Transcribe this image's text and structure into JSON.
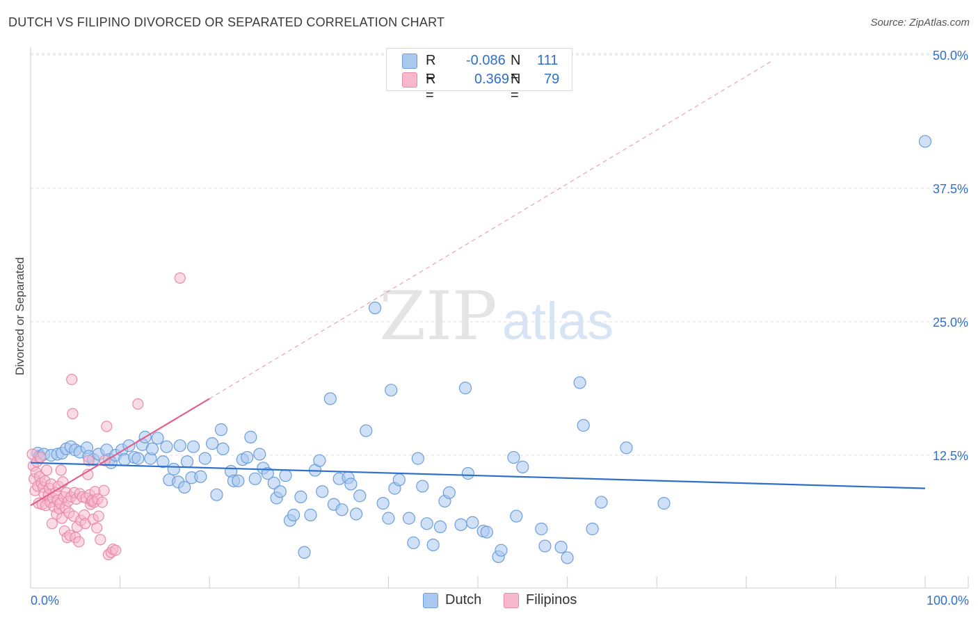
{
  "title": "DUTCH VS FILIPINO DIVORCED OR SEPARATED CORRELATION CHART",
  "source": "Source: ZipAtlas.com",
  "watermark": {
    "zip": "ZIP",
    "atlas": "atlas"
  },
  "colors": {
    "dutch_fill": "#a9c8f0",
    "dutch_stroke": "#6a9edc",
    "dutch_line": "#2f6fcc",
    "filipino_fill": "#f7b8cb",
    "filipino_stroke": "#e98aa8",
    "filipino_line": "#e0608c",
    "value_text": "#2f6fcc",
    "grid": "#dddddd"
  },
  "legend": {
    "rows": [
      {
        "series": "Dutch",
        "r_label": "R =",
        "r_value": "-0.086",
        "n_label": "N =",
        "n_value": "111"
      },
      {
        "series": "Filipinos",
        "r_label": "R =",
        "r_value": "0.369",
        "n_label": "N =",
        "n_value": "79"
      }
    ]
  },
  "bottom_legend": {
    "dutch": "Dutch",
    "filipinos": "Filipinos"
  },
  "chart_data": {
    "type": "scatter",
    "title": "DUTCH VS FILIPINO DIVORCED OR SEPARATED CORRELATION CHART",
    "xlabel": "",
    "ylabel": "Divorced or Separated",
    "xlim": [
      0,
      100
    ],
    "ylim": [
      0,
      50
    ],
    "x_tick_labels": [
      "0.0%",
      "100.0%"
    ],
    "y_ticks": [
      12.5,
      25.0,
      37.5,
      50.0
    ],
    "y_tick_labels": [
      "12.5%",
      "25.0%",
      "37.5%",
      "50.0%"
    ],
    "grid": true,
    "legend_position": "top-center",
    "series": [
      {
        "name": "Dutch",
        "r": -0.086,
        "n": 111,
        "trend": {
          "x": [
            0,
            100
          ],
          "y": [
            11.8,
            9.4
          ]
        },
        "points": [
          [
            0.8,
            12.7
          ],
          [
            1.0,
            12.4
          ],
          [
            1.5,
            12.6
          ],
          [
            2.3,
            12.5
          ],
          [
            3.0,
            12.6
          ],
          [
            3.5,
            12.7
          ],
          [
            4.0,
            13.1
          ],
          [
            4.5,
            13.3
          ],
          [
            5.0,
            13.0
          ],
          [
            5.5,
            12.8
          ],
          [
            6.3,
            13.2
          ],
          [
            6.5,
            12.4
          ],
          [
            7.0,
            12.1
          ],
          [
            7.6,
            12.6
          ],
          [
            8.5,
            13.0
          ],
          [
            8.8,
            12.1
          ],
          [
            9.0,
            11.8
          ],
          [
            9.5,
            12.5
          ],
          [
            10.2,
            13.0
          ],
          [
            10.5,
            12.1
          ],
          [
            11.0,
            13.4
          ],
          [
            11.6,
            12.3
          ],
          [
            12.0,
            12.2
          ],
          [
            12.5,
            13.5
          ],
          [
            12.8,
            14.2
          ],
          [
            13.4,
            12.2
          ],
          [
            13.6,
            13.1
          ],
          [
            14.2,
            14.1
          ],
          [
            14.8,
            11.9
          ],
          [
            15.2,
            13.3
          ],
          [
            15.5,
            10.2
          ],
          [
            16.0,
            11.2
          ],
          [
            16.5,
            10.0
          ],
          [
            16.7,
            13.4
          ],
          [
            17.2,
            9.5
          ],
          [
            17.5,
            11.9
          ],
          [
            18.0,
            10.4
          ],
          [
            18.2,
            13.3
          ],
          [
            19.0,
            10.5
          ],
          [
            19.5,
            12.2
          ],
          [
            20.3,
            13.6
          ],
          [
            20.8,
            8.8
          ],
          [
            21.3,
            14.9
          ],
          [
            21.5,
            13.1
          ],
          [
            22.4,
            11.0
          ],
          [
            22.7,
            10.1
          ],
          [
            23.2,
            10.1
          ],
          [
            23.7,
            12.1
          ],
          [
            24.2,
            12.3
          ],
          [
            24.6,
            14.2
          ],
          [
            25.1,
            10.3
          ],
          [
            25.6,
            12.6
          ],
          [
            26.0,
            11.3
          ],
          [
            26.5,
            10.8
          ],
          [
            27.2,
            9.9
          ],
          [
            27.5,
            8.5
          ],
          [
            27.9,
            9.1
          ],
          [
            28.5,
            10.6
          ],
          [
            29.0,
            6.4
          ],
          [
            29.4,
            6.9
          ],
          [
            30.2,
            8.6
          ],
          [
            30.6,
            3.4
          ],
          [
            31.3,
            6.9
          ],
          [
            31.8,
            11.1
          ],
          [
            32.3,
            12.0
          ],
          [
            32.6,
            9.1
          ],
          [
            33.5,
            17.8
          ],
          [
            33.9,
            7.9
          ],
          [
            34.5,
            10.3
          ],
          [
            34.8,
            7.4
          ],
          [
            35.5,
            10.4
          ],
          [
            35.8,
            9.8
          ],
          [
            36.4,
            7.0
          ],
          [
            36.8,
            8.7
          ],
          [
            37.5,
            14.8
          ],
          [
            38.5,
            26.3
          ],
          [
            39.4,
            8.0
          ],
          [
            40.0,
            6.6
          ],
          [
            40.3,
            18.6
          ],
          [
            40.7,
            9.4
          ],
          [
            41.2,
            10.2
          ],
          [
            42.3,
            6.6
          ],
          [
            42.8,
            4.3
          ],
          [
            43.3,
            12.2
          ],
          [
            43.8,
            9.6
          ],
          [
            44.3,
            6.1
          ],
          [
            45.0,
            4.1
          ],
          [
            45.8,
            5.8
          ],
          [
            46.3,
            8.2
          ],
          [
            46.8,
            9.0
          ],
          [
            48.1,
            6.0
          ],
          [
            48.6,
            18.8
          ],
          [
            48.9,
            10.8
          ],
          [
            49.4,
            6.2
          ],
          [
            50.6,
            5.4
          ],
          [
            51.0,
            5.3
          ],
          [
            52.3,
            3.0
          ],
          [
            52.6,
            3.6
          ],
          [
            54.0,
            12.3
          ],
          [
            54.3,
            6.8
          ],
          [
            55.0,
            11.4
          ],
          [
            57.1,
            5.6
          ],
          [
            57.5,
            4.0
          ],
          [
            59.3,
            3.9
          ],
          [
            60.0,
            2.9
          ],
          [
            61.4,
            19.3
          ],
          [
            61.8,
            15.3
          ],
          [
            62.8,
            5.6
          ],
          [
            63.8,
            8.1
          ],
          [
            66.6,
            13.2
          ],
          [
            70.8,
            8.0
          ],
          [
            100.0,
            41.9
          ]
        ]
      },
      {
        "name": "Filipinos",
        "r": 0.369,
        "n": 79,
        "trend": {
          "x": [
            0,
            20
          ],
          "y": [
            7.8,
            17.8
          ]
        },
        "trend_extended": {
          "x": [
            20,
            83
          ],
          "y": [
            17.8,
            49.5
          ]
        },
        "points": [
          [
            0.2,
            12.6
          ],
          [
            0.3,
            11.5
          ],
          [
            0.4,
            10.3
          ],
          [
            0.5,
            9.2
          ],
          [
            0.6,
            10.9
          ],
          [
            0.7,
            11.9
          ],
          [
            0.8,
            9.6
          ],
          [
            0.9,
            8.0
          ],
          [
            1.0,
            10.5
          ],
          [
            1.1,
            12.3
          ],
          [
            1.2,
            9.9
          ],
          [
            1.3,
            7.9
          ],
          [
            1.4,
            9.5
          ],
          [
            1.5,
            8.9
          ],
          [
            1.6,
            10.1
          ],
          [
            1.7,
            7.8
          ],
          [
            1.8,
            11.1
          ],
          [
            2.0,
            8.8
          ],
          [
            2.1,
            9.4
          ],
          [
            2.2,
            8.1
          ],
          [
            2.3,
            9.8
          ],
          [
            2.4,
            6.1
          ],
          [
            2.5,
            8.5
          ],
          [
            2.6,
            7.7
          ],
          [
            2.8,
            9.0
          ],
          [
            2.9,
            7.0
          ],
          [
            3.0,
            8.3
          ],
          [
            3.1,
            9.6
          ],
          [
            3.2,
            7.5
          ],
          [
            3.3,
            8.0
          ],
          [
            3.4,
            11.1
          ],
          [
            3.5,
            6.6
          ],
          [
            3.6,
            10.0
          ],
          [
            3.7,
            8.6
          ],
          [
            3.8,
            5.4
          ],
          [
            3.9,
            7.6
          ],
          [
            4.0,
            9.0
          ],
          [
            4.1,
            4.8
          ],
          [
            4.2,
            8.2
          ],
          [
            4.3,
            7.1
          ],
          [
            4.4,
            5.0
          ],
          [
            4.5,
            8.6
          ],
          [
            4.6,
            19.6
          ],
          [
            4.7,
            16.4
          ],
          [
            4.8,
            6.8
          ],
          [
            4.9,
            9.0
          ],
          [
            5.0,
            4.8
          ],
          [
            5.1,
            8.4
          ],
          [
            5.2,
            5.8
          ],
          [
            5.4,
            4.4
          ],
          [
            5.5,
            8.9
          ],
          [
            5.6,
            6.4
          ],
          [
            5.8,
            8.6
          ],
          [
            6.0,
            6.9
          ],
          [
            6.1,
            6.1
          ],
          [
            6.2,
            8.5
          ],
          [
            6.4,
            10.7
          ],
          [
            6.5,
            12.0
          ],
          [
            6.6,
            8.8
          ],
          [
            6.7,
            7.9
          ],
          [
            6.8,
            8.2
          ],
          [
            6.9,
            8.3
          ],
          [
            7.0,
            6.5
          ],
          [
            7.1,
            8.1
          ],
          [
            7.2,
            9.1
          ],
          [
            7.4,
            5.7
          ],
          [
            7.5,
            8.4
          ],
          [
            7.6,
            6.8
          ],
          [
            7.8,
            4.6
          ],
          [
            8.0,
            8.1
          ],
          [
            8.2,
            9.2
          ],
          [
            8.3,
            12.0
          ],
          [
            8.5,
            15.2
          ],
          [
            8.7,
            3.2
          ],
          [
            9.0,
            3.4
          ],
          [
            9.2,
            3.7
          ],
          [
            9.5,
            3.6
          ],
          [
            12.0,
            17.3
          ],
          [
            16.7,
            29.1
          ]
        ]
      }
    ]
  }
}
